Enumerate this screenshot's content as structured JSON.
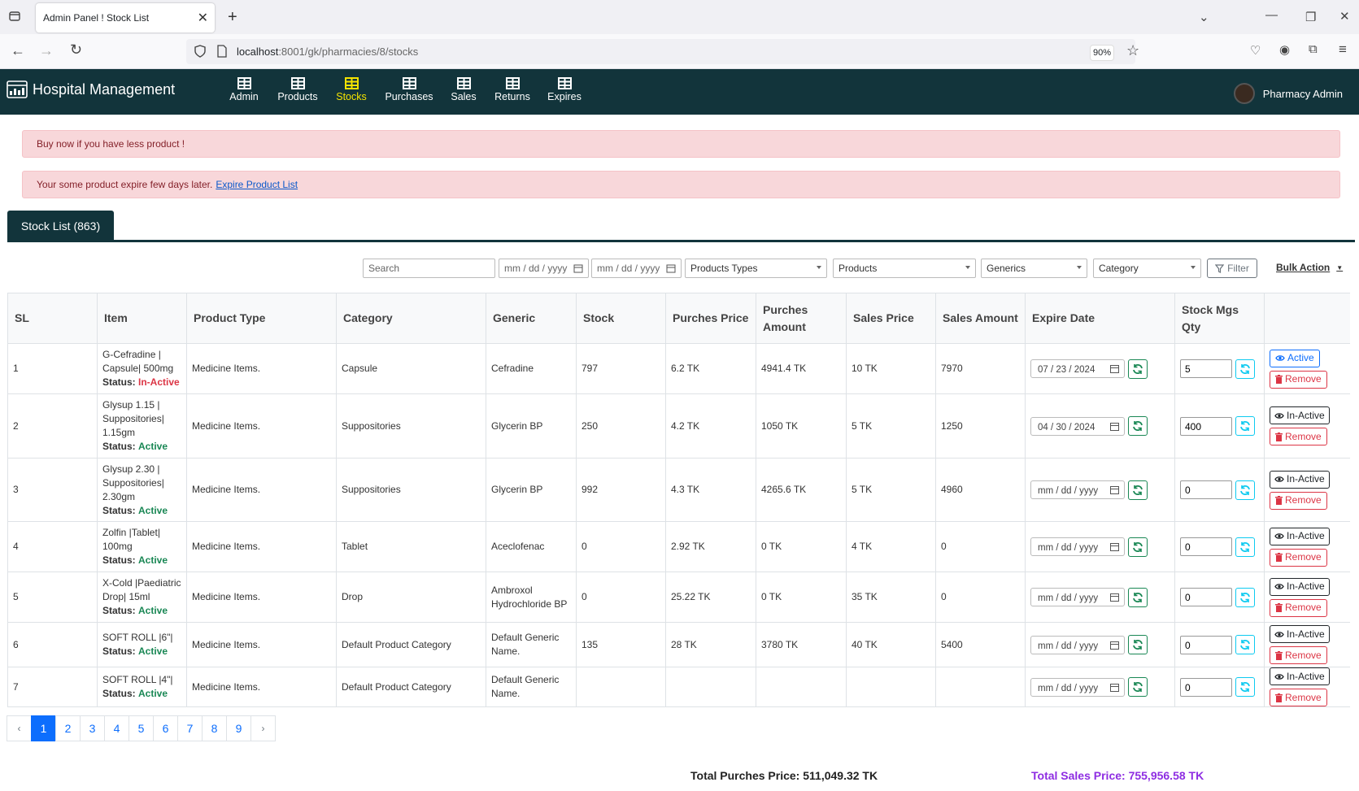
{
  "browser": {
    "tab_title": "Admin Panel ! Stock List",
    "url_host": "localhost",
    "url_rest": ":8001/gk/pharmacies/8/stocks",
    "zoom": "90%"
  },
  "app": {
    "brand": "Hospital Management",
    "nav": [
      {
        "label": "Admin",
        "active": false
      },
      {
        "label": "Products",
        "active": false
      },
      {
        "label": "Stocks",
        "active": true
      },
      {
        "label": "Purchases",
        "active": false
      },
      {
        "label": "Sales",
        "active": false
      },
      {
        "label": "Returns",
        "active": false
      },
      {
        "label": "Expires",
        "active": false
      }
    ],
    "user": "Pharmacy Admin"
  },
  "alerts": {
    "low_stock": "Buy now if you have less product !",
    "expire_text": "Your some product expire few days later.",
    "expire_link": "Expire Product List"
  },
  "card": {
    "title": "Stock List (863)"
  },
  "filters": {
    "search_placeholder": "Search",
    "date_from": "mm / dd / yyyy",
    "date_to": "mm / dd / yyyy",
    "product_types": "Products Types",
    "products": "Products",
    "generics": "Generics",
    "category": "Category",
    "filter_button": "Filter",
    "bulk_action": "Bulk Action"
  },
  "table": {
    "headers": [
      "SL",
      "Item",
      "Product Type",
      "Category",
      "Generic",
      "Stock",
      "Purches Price",
      "Purches Amount",
      "Sales Price",
      "Sales Amount",
      "Expire Date",
      "Stock Mgs Qty",
      ""
    ],
    "status_label": "Status:",
    "remove_label": "Remove",
    "rows": [
      {
        "sl": "1",
        "item": "G-Cefradine | Capsule| 500mg",
        "status": "In-Active",
        "type": "Medicine Items.",
        "category": "Capsule",
        "generic": "Cefradine",
        "stock": "797",
        "p_price": "6.2 TK",
        "p_amount": "4941.4 TK",
        "s_price": "10 TK",
        "s_amount": "7970",
        "expire": "07 / 23 / 2024",
        "qty": "5",
        "toggle": "Active"
      },
      {
        "sl": "2",
        "item": "Glysup 1.15 | Suppositories| 1.15gm",
        "status": "Active",
        "type": "Medicine Items.",
        "category": "Suppositories",
        "generic": "Glycerin BP",
        "stock": "250",
        "p_price": "4.2 TK",
        "p_amount": "1050 TK",
        "s_price": "5 TK",
        "s_amount": "1250",
        "expire": "04 / 30 / 2024",
        "qty": "400",
        "toggle": "In-Active"
      },
      {
        "sl": "3",
        "item": "Glysup 2.30 | Suppositories| 2.30gm",
        "status": "Active",
        "type": "Medicine Items.",
        "category": "Suppositories",
        "generic": "Glycerin BP",
        "stock": "992",
        "p_price": "4.3 TK",
        "p_amount": "4265.6 TK",
        "s_price": "5 TK",
        "s_amount": "4960",
        "expire": "mm / dd / yyyy",
        "qty": "0",
        "toggle": "In-Active"
      },
      {
        "sl": "4",
        "item": "Zolfin |Tablet| 100mg",
        "status": "Active",
        "type": "Medicine Items.",
        "category": "Tablet",
        "generic": "Aceclofenac",
        "stock": "0",
        "p_price": "2.92 TK",
        "p_amount": "0 TK",
        "s_price": "4 TK",
        "s_amount": "0",
        "expire": "mm / dd / yyyy",
        "qty": "0",
        "toggle": "In-Active"
      },
      {
        "sl": "5",
        "item": "X-Cold |Paediatric Drop| 15ml",
        "status": "Active",
        "type": "Medicine Items.",
        "category": "Drop",
        "generic": "Ambroxol Hydrochloride BP",
        "stock": "0",
        "p_price": "25.22 TK",
        "p_amount": "0 TK",
        "s_price": "35 TK",
        "s_amount": "0",
        "expire": "mm / dd / yyyy",
        "qty": "0",
        "toggle": "In-Active"
      },
      {
        "sl": "6",
        "item": "SOFT ROLL |6\"|",
        "status": "Active",
        "type": "Medicine Items.",
        "category": "Default Product Category",
        "generic": "Default Generic Name.",
        "stock": "135",
        "p_price": "28 TK",
        "p_amount": "3780 TK",
        "s_price": "40 TK",
        "s_amount": "5400",
        "expire": "mm / dd / yyyy",
        "qty": "0",
        "toggle": "In-Active"
      },
      {
        "sl": "7",
        "item": "SOFT ROLL |4\"|",
        "status": "Active",
        "type": "Medicine Items.",
        "category": "Default Product Category",
        "generic": "Default Generic Name.",
        "stock": "",
        "p_price": "",
        "p_amount": "",
        "s_price": "",
        "s_amount": "",
        "expire": "mm / dd / yyyy",
        "qty": "0",
        "toggle": "In-Active"
      }
    ]
  },
  "pagination": {
    "prev": "‹",
    "pages": [
      "1",
      "2",
      "3",
      "4",
      "5",
      "6",
      "7",
      "8",
      "9"
    ],
    "current": "1",
    "next": "›"
  },
  "totals": {
    "purchase": "Total Purches Price: 511,049.32 TK",
    "sales": "Total Sales Price: 755,956.58 TK"
  },
  "colors": {
    "header_bg": "#12343b",
    "active_nav": "#f5e300",
    "alert_bg": "#f8d7da",
    "primary": "#0d6efd",
    "sales_total": "#8e2de2"
  }
}
